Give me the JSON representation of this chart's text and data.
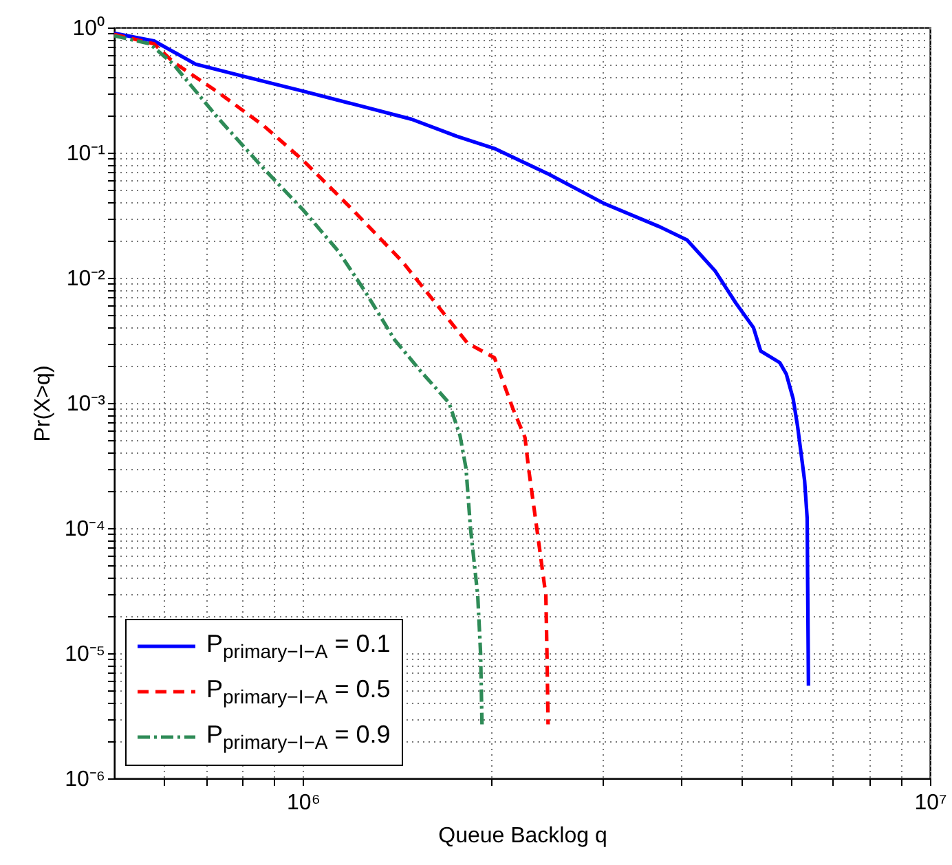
{
  "chart_data": {
    "type": "line",
    "xlabel": "Queue Backlog q",
    "ylabel": "Pr(X>q)",
    "log": "xy",
    "grid": true,
    "legend": "bottom left",
    "marker": "none",
    "xlim": [
      500000,
      10000000
    ],
    "xticks": [
      {
        "value": 600000,
        "label": null
      },
      {
        "value": 700000,
        "label": null
      },
      {
        "value": 800000,
        "label": null
      },
      {
        "value": 900000,
        "label": null
      },
      {
        "value": 1000000,
        "label": "10⁶"
      },
      {
        "value": 2000000,
        "label": null
      },
      {
        "value": 3000000,
        "label": null
      },
      {
        "value": 4000000,
        "label": null
      },
      {
        "value": 5000000,
        "label": null
      },
      {
        "value": 6000000,
        "label": null
      },
      {
        "value": 7000000,
        "label": null
      },
      {
        "value": 8000000,
        "label": null
      },
      {
        "value": 9000000,
        "label": null
      },
      {
        "value": 10000000,
        "label": "10⁷"
      }
    ],
    "ylim": [
      1e-06,
      1
    ],
    "yticks": [
      {
        "value": 1e-06,
        "label": "10⁻⁶"
      },
      {
        "value": 2e-06,
        "label": null
      },
      {
        "value": 3e-06,
        "label": null
      },
      {
        "value": 4e-06,
        "label": null
      },
      {
        "value": 5e-06,
        "label": null
      },
      {
        "value": 6e-06,
        "label": null
      },
      {
        "value": 7e-06,
        "label": null
      },
      {
        "value": 8e-06,
        "label": null
      },
      {
        "value": 9e-06,
        "label": null
      },
      {
        "value": 1e-05,
        "label": "10⁻⁵"
      },
      {
        "value": 2e-05,
        "label": null
      },
      {
        "value": 3e-05,
        "label": null
      },
      {
        "value": 4e-05,
        "label": null
      },
      {
        "value": 5e-05,
        "label": null
      },
      {
        "value": 6e-05,
        "label": null
      },
      {
        "value": 7e-05,
        "label": null
      },
      {
        "value": 8e-05,
        "label": null
      },
      {
        "value": 9e-05,
        "label": null
      },
      {
        "value": 0.0001,
        "label": "10⁻⁴"
      },
      {
        "value": 0.0002,
        "label": null
      },
      {
        "value": 0.0003,
        "label": null
      },
      {
        "value": 0.0004,
        "label": null
      },
      {
        "value": 0.0005,
        "label": null
      },
      {
        "value": 0.0006,
        "label": null
      },
      {
        "value": 0.0007,
        "label": null
      },
      {
        "value": 0.0008,
        "label": null
      },
      {
        "value": 0.0009,
        "label": null
      },
      {
        "value": 0.001,
        "label": "10⁻³"
      },
      {
        "value": 0.002,
        "label": null
      },
      {
        "value": 0.003,
        "label": null
      },
      {
        "value": 0.004,
        "label": null
      },
      {
        "value": 0.005,
        "label": null
      },
      {
        "value": 0.006,
        "label": null
      },
      {
        "value": 0.007,
        "label": null
      },
      {
        "value": 0.008,
        "label": null
      },
      {
        "value": 0.009,
        "label": null
      },
      {
        "value": 0.01,
        "label": "10⁻²"
      },
      {
        "value": 0.02,
        "label": null
      },
      {
        "value": 0.03,
        "label": null
      },
      {
        "value": 0.04,
        "label": null
      },
      {
        "value": 0.05,
        "label": null
      },
      {
        "value": 0.06,
        "label": null
      },
      {
        "value": 0.07,
        "label": null
      },
      {
        "value": 0.08,
        "label": null
      },
      {
        "value": 0.09,
        "label": null
      },
      {
        "value": 0.1,
        "label": "10⁻¹"
      },
      {
        "value": 0.2,
        "label": null
      },
      {
        "value": 0.3,
        "label": null
      },
      {
        "value": 0.4,
        "label": null
      },
      {
        "value": 0.5,
        "label": null
      },
      {
        "value": 0.6,
        "label": null
      },
      {
        "value": 0.7,
        "label": null
      },
      {
        "value": 0.8,
        "label": null
      },
      {
        "value": 0.9,
        "label": null
      },
      {
        "value": 1,
        "label": "10⁰"
      }
    ],
    "series": [
      {
        "name": "P$_{primary−I−A}$ = 0.1",
        "color": "#0000ff",
        "line_style": "solid",
        "x": [
          500000,
          579000,
          674000,
          800000,
          1000000,
          1220000,
          1490000,
          1760000,
          2020000,
          2470000,
          3030000,
          3710000,
          4100000,
          4540000,
          4900000,
          5230000,
          5370000,
          5760000,
          5900000,
          6050000,
          6150000,
          6310000,
          6370000,
          6400000
        ],
        "values": [
          0.9,
          0.78,
          0.51,
          0.41,
          0.31,
          0.24,
          0.185,
          0.135,
          0.108,
          0.067,
          0.039,
          0.0255,
          0.02,
          0.0114,
          0.0063,
          0.004,
          0.0026,
          0.0021,
          0.0017,
          0.00108,
          0.00065,
          0.00024,
          0.00012,
          5.5e-06
        ]
      },
      {
        "name": "P$_{primary−I−A}$ = 0.5",
        "color": "#ff0000",
        "line_style": "dashed",
        "x": [
          500000,
          579000,
          621000,
          735000,
          867000,
          1000000,
          1200000,
          1440000,
          1710000,
          1830000,
          2020000,
          2160000,
          2260000,
          2290000,
          2360000,
          2440000,
          2450000,
          2460000
        ],
        "values": [
          0.88,
          0.74,
          0.53,
          0.3,
          0.163,
          0.087,
          0.035,
          0.0135,
          0.0046,
          0.003,
          0.0023,
          0.00091,
          0.00053,
          0.0003,
          0.0001,
          2.9e-05,
          1e-05,
          2.7e-06
        ]
      },
      {
        "name": "P$_{primary−I−A}$ = 0.9",
        "color": "#2e8b57",
        "line_style": "dashdot",
        "x": [
          500000,
          570000,
          621000,
          735000,
          867000,
          1000000,
          1140000,
          1260000,
          1400000,
          1540000,
          1710000,
          1780000,
          1820000,
          1850000,
          1900000,
          1920000,
          1930000
        ],
        "values": [
          0.86,
          0.74,
          0.51,
          0.185,
          0.074,
          0.035,
          0.0162,
          0.0076,
          0.0032,
          0.0018,
          0.001,
          0.00055,
          0.0003,
          0.0001,
          2.9e-05,
          1e-05,
          2.7e-06
        ]
      }
    ]
  }
}
